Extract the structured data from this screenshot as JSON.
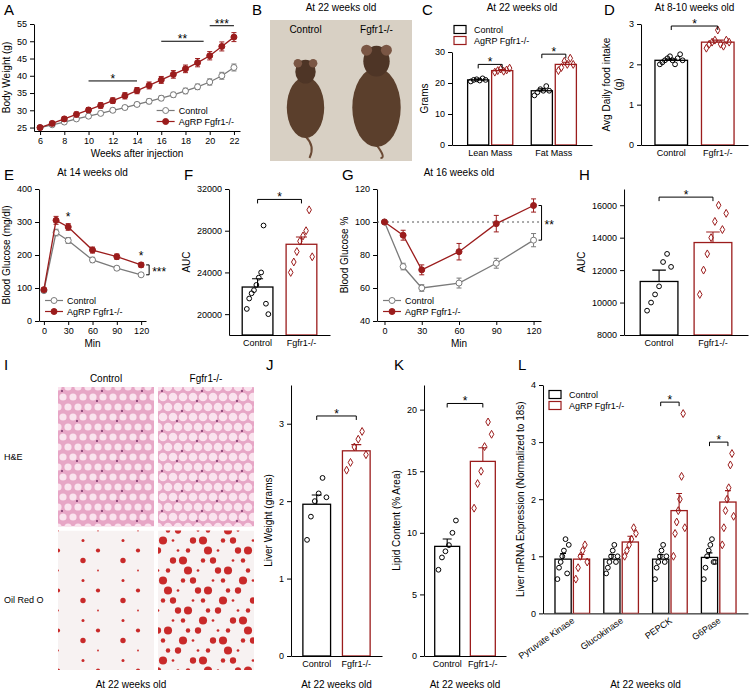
{
  "chart_data": [
    {
      "type": "line",
      "panel": "A",
      "x": [
        6,
        7,
        8,
        9,
        10,
        11,
        12,
        13,
        14,
        15,
        16,
        17,
        18,
        19,
        20,
        21,
        22
      ],
      "xlim": [
        5.5,
        22.5
      ],
      "xticks": [
        6,
        8,
        10,
        12,
        14,
        16,
        18,
        20,
        22
      ],
      "ylim": [
        24,
        55
      ],
      "yticks": [
        25,
        30,
        35,
        40,
        45,
        50,
        55
      ],
      "xlabel": "Weeks after injection",
      "ylabel": "Body Weight (g)",
      "legend": "lower right",
      "series": [
        {
          "name": "Control",
          "color": "#7a7a7a",
          "marker": "open-circle",
          "values": [
            25,
            25.8,
            26.6,
            27.5,
            28.3,
            29.1,
            30,
            30.8,
            31.7,
            32.6,
            33.5,
            34.5,
            35.6,
            36.8,
            38.2,
            40,
            42.4
          ],
          "errors": [
            0.5,
            0.5,
            0.5,
            0.5,
            0.6,
            0.6,
            0.6,
            0.6,
            0.6,
            0.7,
            0.7,
            0.7,
            0.8,
            0.8,
            0.9,
            1.0,
            1.0
          ]
        },
        {
          "name": "AgRP Fgfr1-/-",
          "color": "#9b1c1c",
          "marker": "circle",
          "values": [
            25,
            26.2,
            27.5,
            28.8,
            30.1,
            31.4,
            32.8,
            34.2,
            35.7,
            37.2,
            38.8,
            40.4,
            42,
            43.8,
            45.8,
            48.5,
            51.2
          ],
          "errors": [
            0.5,
            0.6,
            0.6,
            0.7,
            0.7,
            0.8,
            0.8,
            0.9,
            0.9,
            1.0,
            1.0,
            1.1,
            1.1,
            1.2,
            1.2,
            1.3,
            1.3
          ]
        }
      ],
      "annotations": [
        {
          "text": "*",
          "x0": 10,
          "x1": 14,
          "y": 38.5
        },
        {
          "text": "**",
          "x0": 16,
          "x1": 19.5,
          "y": 50
        },
        {
          "text": "***",
          "x0": 20,
          "x1": 22,
          "y": 54.5
        }
      ]
    },
    {
      "type": "image",
      "panel": "B",
      "subtitle": "At 22 weeks old",
      "categories": [
        "Control",
        "Fgfr1-/-"
      ]
    },
    {
      "type": "bar",
      "panel": "C",
      "subtitle": "At 22 weeks old",
      "categories": [
        "Lean Mass",
        "Fat Mass"
      ],
      "ylabel": "Grams",
      "ylim": [
        0,
        30
      ],
      "yticks": [
        0,
        10,
        20,
        30
      ],
      "legend": "top",
      "series": [
        {
          "name": "Control",
          "color": "#000000",
          "marker": "circle",
          "values": [
            21,
            17.5
          ],
          "errors": [
            0.3,
            0.6
          ],
          "points": [
            [
              20.5,
              21,
              21.2,
              20.8,
              21.5,
              21
            ],
            [
              16,
              17,
              18,
              17.5,
              19,
              17.5
            ]
          ]
        },
        {
          "name": "AgRP Fgfr1-/-",
          "color": "#9b1c1c",
          "marker": "diamond",
          "values": [
            24,
            26
          ],
          "errors": [
            0.3,
            0.7
          ],
          "points": [
            [
              23.5,
              24,
              24.5,
              23.8,
              24.2,
              24.8
            ],
            [
              24,
              25,
              27,
              26,
              28,
              26
            ]
          ]
        }
      ],
      "annotations": [
        {
          "text": "*",
          "x": 0,
          "y": 26
        },
        {
          "text": "*",
          "x": 1,
          "y": 29.3
        }
      ]
    },
    {
      "type": "bar",
      "panel": "D",
      "subtitle": "At 8-10 weeks old",
      "categories": [
        "Control",
        "Fgfr1-/-"
      ],
      "ylabel": "Avg Daily food intake (g)",
      "ylim": [
        0,
        3
      ],
      "yticks": [
        0,
        1,
        2,
        3
      ],
      "values": [
        2.1,
        2.55
      ],
      "errors": [
        0.03,
        0.05
      ],
      "colors": [
        "#000000",
        "#9b1c1c"
      ],
      "points": [
        [
          2.0,
          2.05,
          2.1,
          2.15,
          2.2,
          2.1,
          2.0,
          2.15,
          2.25,
          2.1
        ],
        [
          2.4,
          2.5,
          2.55,
          2.6,
          2.85,
          2.5,
          2.45,
          2.6,
          2.55
        ]
      ],
      "annotations": [
        {
          "text": "*",
          "x0": 0,
          "x1": 1,
          "y": 2.95
        }
      ]
    },
    {
      "type": "line",
      "panel": "E",
      "subtitle": "At 14 weeks old",
      "x": [
        0,
        15,
        30,
        60,
        90,
        120
      ],
      "xlim": [
        -6,
        126
      ],
      "xticks": [
        0,
        30,
        60,
        90,
        120
      ],
      "ylim": [
        0,
        400
      ],
      "yticks": [
        0,
        100,
        200,
        300,
        400
      ],
      "xlabel": "Min",
      "ylabel": "Blood Glucose (mg/dl)",
      "legend": "lower left",
      "series": [
        {
          "name": "Control",
          "color": "#7a7a7a",
          "marker": "open-circle",
          "values": [
            92,
            268,
            244,
            185,
            160,
            140
          ],
          "errors": [
            4,
            10,
            9,
            8,
            6,
            5
          ]
        },
        {
          "name": "AgRP Fgfr1-/-",
          "color": "#9b1c1c",
          "marker": "circle",
          "values": [
            95,
            305,
            285,
            215,
            195,
            170
          ],
          "errors": [
            5,
            12,
            10,
            9,
            8,
            7
          ]
        }
      ],
      "annotations": [
        {
          "text": "*",
          "x": 30,
          "y": 308
        },
        {
          "text": "*",
          "x": 120,
          "y": 192
        },
        {
          "text": "***",
          "x": 120,
          "y0": 140,
          "y1": 170
        }
      ]
    },
    {
      "type": "bar",
      "panel": "F",
      "categories": [
        "Control",
        "Fgfr1-/-"
      ],
      "ylabel": "AUC",
      "ylim": [
        18000,
        32000
      ],
      "yticks": [
        20000,
        24000,
        28000,
        32000
      ],
      "values": [
        22600,
        26700
      ],
      "errors": [
        800,
        700
      ],
      "colors": [
        "#000000",
        "#9b1c1c"
      ],
      "points": [
        [
          20500,
          21500,
          22000,
          22300,
          22800,
          23500,
          24000,
          28500,
          21000,
          20000
        ],
        [
          24000,
          25000,
          26000,
          27000,
          27500,
          28000,
          30000,
          25500
        ]
      ],
      "annotations": [
        {
          "text": "*",
          "x0": 0,
          "x1": 1,
          "y": 31000
        }
      ]
    },
    {
      "type": "line",
      "panel": "G",
      "subtitle": "At 16 weeks old",
      "x": [
        0,
        15,
        30,
        60,
        90,
        120
      ],
      "xlim": [
        -6,
        126
      ],
      "xticks": [
        0,
        30,
        60,
        90,
        120
      ],
      "ylim": [
        40,
        120
      ],
      "yticks": [
        40,
        60,
        80,
        100,
        120
      ],
      "xlabel": "Min",
      "ylabel": "Blood Glucose %",
      "legend": "lower left",
      "reference_line": 100,
      "series": [
        {
          "name": "Control",
          "color": "#7a7a7a",
          "marker": "open-circle",
          "values": [
            100,
            73,
            60,
            63,
            75,
            89
          ],
          "errors": [
            0,
            2,
            2,
            3,
            3,
            4
          ]
        },
        {
          "name": "AgRP Fgfr1-/-",
          "color": "#9b1c1c",
          "marker": "circle",
          "values": [
            100,
            92,
            71,
            82,
            99,
            110
          ],
          "errors": [
            0,
            3,
            3,
            5,
            5,
            4
          ]
        }
      ],
      "annotations": [
        {
          "text": "**",
          "x": 120,
          "y0": 89,
          "y1": 110
        }
      ]
    },
    {
      "type": "bar",
      "panel": "H",
      "categories": [
        "Control",
        "Fgfr1-/-"
      ],
      "ylabel": "AUC",
      "ylim": [
        8000,
        17000
      ],
      "yticks": [
        8000,
        10000,
        12000,
        14000,
        16000
      ],
      "values": [
        11300,
        13700
      ],
      "errors": [
        700,
        650
      ],
      "colors": [
        "#000000",
        "#9b1c1c"
      ],
      "points": [
        [
          9500,
          10000,
          10500,
          11000,
          12500,
          13000,
          12200
        ],
        [
          10500,
          12000,
          13000,
          14000,
          15000,
          16000,
          14500,
          15500
        ]
      ],
      "annotations": [
        {
          "text": "*",
          "x0": 0,
          "x1": 1,
          "y": 16500
        }
      ]
    },
    {
      "type": "image",
      "panel": "I",
      "subtitle": "At 22 weeks old",
      "categories": [
        "Control",
        "Fgfr1-/-"
      ],
      "rows": [
        "H&E",
        "Oil Red O"
      ]
    },
    {
      "type": "bar",
      "panel": "J",
      "subtitle": "At 22 weeks old",
      "categories": [
        "Control",
        "Fgfr1-/-"
      ],
      "ylabel": "Liver Weight (grams)",
      "ylim": [
        0,
        3.5
      ],
      "yticks": [
        0,
        1,
        2,
        3
      ],
      "values": [
        1.96,
        2.65
      ],
      "errors": [
        0.12,
        0.08
      ],
      "colors": [
        "#000000",
        "#9b1c1c"
      ],
      "points": [
        [
          1.5,
          1.8,
          2.0,
          2.1,
          2.3,
          2.05
        ],
        [
          2.4,
          2.5,
          2.7,
          2.8,
          2.9,
          2.6
        ]
      ],
      "annotations": [
        {
          "text": "*",
          "x0": 0,
          "x1": 1,
          "y": 3.1
        }
      ]
    },
    {
      "type": "bar",
      "panel": "K",
      "subtitle": "At 22 weeks old",
      "categories": [
        "Control",
        "Fgfr1-/-"
      ],
      "ylabel": "Lipid Content (% Area)",
      "ylim": [
        0,
        22
      ],
      "yticks": [
        0,
        5,
        10,
        15,
        20
      ],
      "values": [
        8.9,
        15.8
      ],
      "errors": [
        0.6,
        1.1
      ],
      "colors": [
        "#000000",
        "#9b1c1c"
      ],
      "points": [
        [
          7,
          8,
          8.5,
          9,
          10,
          11
        ],
        [
          12,
          14,
          15,
          17,
          19,
          18
        ]
      ],
      "annotations": [
        {
          "text": "*",
          "x0": 0,
          "x1": 1,
          "y": 20.5
        }
      ]
    },
    {
      "type": "bar",
      "panel": "L",
      "subtitle": "At 22 weeks old",
      "categories": [
        "Pyruvate Kinase",
        "Glucokinase",
        "PEPCK",
        "G6Pase"
      ],
      "ylabel": "Liver mRNA Expression (Normalized to 18s)",
      "ylim": [
        0,
        4
      ],
      "yticks": [
        0,
        1,
        2,
        3,
        4
      ],
      "legend": "upper left",
      "series": [
        {
          "name": "Control",
          "color": "#000000",
          "marker": "circle",
          "values": [
            0.95,
            0.95,
            0.95,
            0.98
          ],
          "errors": [
            0.1,
            0.08,
            0.08,
            0.08
          ],
          "points": [
            [
              0.6,
              0.8,
              0.9,
              1.0,
              1.1,
              1.3,
              0.7,
              1.2
            ],
            [
              0.7,
              0.8,
              0.9,
              1.0,
              1.1,
              1.2,
              0.9,
              1.0
            ],
            [
              0.6,
              0.8,
              0.9,
              1.0,
              1.1,
              1.2,
              0.9,
              1.0
            ],
            [
              0.6,
              0.8,
              1.0,
              1.1,
              1.2,
              1.3,
              0.9,
              0.9
            ]
          ]
        },
        {
          "name": "AgRP Fgfr1-/-",
          "color": "#9b1c1c",
          "marker": "diamond",
          "values": [
            0.95,
            1.25,
            1.8,
            1.95
          ],
          "errors": [
            0.08,
            0.1,
            0.3,
            0.2
          ],
          "points": [
            [
              0.6,
              0.8,
              1.0,
              1.1,
              1.2,
              0.9
            ],
            [
              1.0,
              1.1,
              1.2,
              1.3,
              1.5,
              1.4
            ],
            [
              1.0,
              1.4,
              1.6,
              1.8,
              2.0,
              2.4,
              3.5,
              1.5
            ],
            [
              1.2,
              1.5,
              1.8,
              2.0,
              2.2,
              2.6,
              2.8,
              1.7
            ]
          ]
        }
      ],
      "annotations": [
        {
          "text": "*",
          "x": 2,
          "y": 3.7
        },
        {
          "text": "*",
          "x": 3,
          "y": 3.0
        }
      ]
    }
  ]
}
